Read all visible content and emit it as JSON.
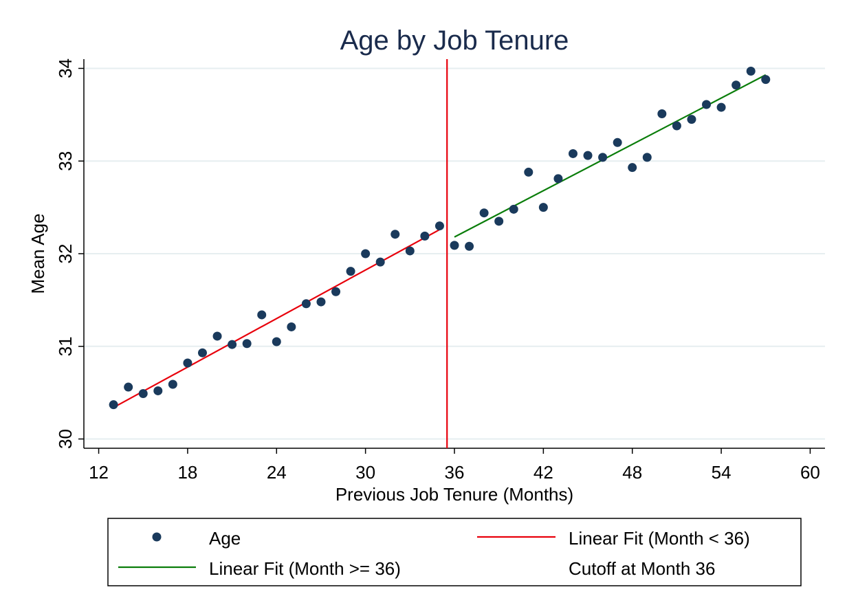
{
  "chart_data": {
    "type": "scatter",
    "title": "Age by Job Tenure",
    "xlabel": "Previous Job Tenure (Months)",
    "ylabel": "Mean Age",
    "xlim": [
      11,
      61
    ],
    "ylim": [
      29.9,
      34.1
    ],
    "xticks": [
      "12",
      "18",
      "24",
      "30",
      "36",
      "42",
      "48",
      "54",
      "60"
    ],
    "yticks": [
      "30",
      "31",
      "32",
      "33",
      "34"
    ],
    "grid": true,
    "legend_position": "bottom",
    "colors": {
      "title": "#1a2b4c",
      "points": "#1a3a5c",
      "fit_before": "#e8000b",
      "fit_after": "#0a7d0a",
      "cutoff": "#e8000b",
      "grid": "#e6eef0"
    },
    "series": [
      {
        "name": "Age",
        "kind": "scatter",
        "x": [
          13,
          14,
          15,
          16,
          17,
          18,
          19,
          20,
          21,
          22,
          23,
          24,
          25,
          26,
          27,
          28,
          29,
          30,
          31,
          32,
          33,
          34,
          35,
          36,
          37,
          38,
          39,
          40,
          41,
          42,
          43,
          44,
          45,
          46,
          47,
          48,
          49,
          50,
          51,
          52,
          53,
          54,
          55,
          56,
          57
        ],
        "y": [
          30.37,
          30.56,
          30.49,
          30.52,
          30.59,
          30.82,
          30.93,
          31.11,
          31.02,
          31.03,
          31.34,
          31.05,
          31.21,
          31.46,
          31.48,
          31.59,
          31.81,
          32.0,
          31.91,
          32.21,
          32.03,
          32.19,
          32.3,
          32.09,
          32.08,
          32.44,
          32.35,
          32.48,
          32.88,
          32.5,
          32.81,
          33.08,
          33.06,
          33.04,
          33.2,
          32.93,
          33.04,
          33.51,
          33.38,
          33.45,
          33.61,
          33.58,
          33.82,
          33.97,
          33.88
        ]
      },
      {
        "name": "Linear Fit (Month < 36)",
        "kind": "line",
        "x": [
          13,
          35
        ],
        "y": [
          30.34,
          32.26
        ]
      },
      {
        "name": "Linear Fit (Month >= 36)",
        "kind": "line",
        "x": [
          36,
          57
        ],
        "y": [
          32.18,
          33.93
        ]
      },
      {
        "name": "Cutoff at Month 36",
        "kind": "vline",
        "x": 35.5
      }
    ],
    "legend": [
      {
        "label": "Age",
        "marker": "dot"
      },
      {
        "label": "Linear Fit (Month < 36)",
        "marker": "line-red"
      },
      {
        "label": "Linear Fit (Month >= 36)",
        "marker": "line-green"
      },
      {
        "label": "Cutoff at Month 36",
        "marker": "none"
      }
    ]
  }
}
